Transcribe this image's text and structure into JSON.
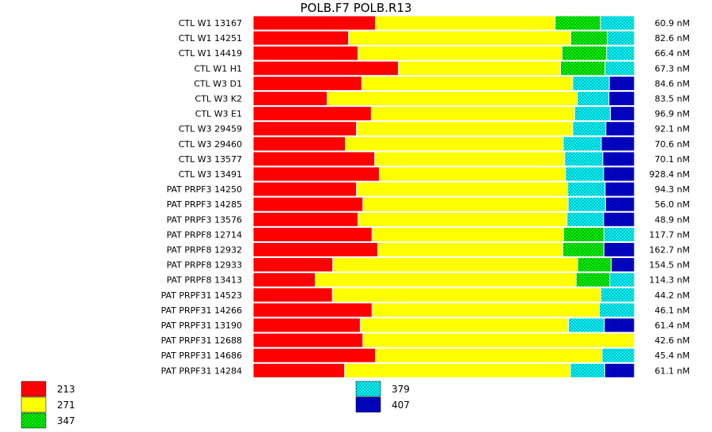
{
  "chart_data": {
    "type": "bar",
    "orientation": "horizontal",
    "stacked": true,
    "normalized": true,
    "title": "POLB.F7  POLB.R13",
    "categories": [
      "CTL W1 13167",
      "CTL W1 14251",
      "CTL W1 14419",
      "CTL W1 H1",
      "CTL W3 D1",
      "CTL W3 K2",
      "CTL W3 E1",
      "CTL W3 29459",
      "CTL W3 29460",
      "CTL W3 13577",
      "CTL W3 13491",
      "PAT PRPF3 14250",
      "PAT PRPF3 14285",
      "PAT PRPF3 13576",
      "PAT PRPF8 12714",
      "PAT PRPF8 12932",
      "PAT PRPF8 12933",
      "PAT PRPF8 13413",
      "PAT PRPF31 14523",
      "PAT PRPF31 14266",
      "PAT PRPF31 13190",
      "PAT PRPF31 12688",
      "PAT PRPF31 14686",
      "PAT PRPF31 14284"
    ],
    "concentrations": [
      "60.9 nM",
      "82.6 nM",
      "66.4 nM",
      "67.3 nM",
      "84.6 nM",
      "83.5 nM",
      "96.9 nM",
      "92.1 nM",
      "70.6 nM",
      "70.1 nM",
      "928.4 nM",
      "94.3 nM",
      "56.0 nM",
      "48.9 nM",
      "117.7 nM",
      "162.7 nM",
      "154.5 nM",
      "114.3 nM",
      "44.2 nM",
      "46.1 nM",
      "61.4 nM",
      "42.6 nM",
      "45.4 nM",
      "61.1 nM"
    ],
    "series": [
      {
        "name": "213",
        "color": "#ff0000",
        "pattern": "solid",
        "values": [
          32.1,
          25.0,
          27.5,
          38.1,
          28.5,
          19.4,
          31.0,
          27.1,
          24.2,
          31.9,
          33.1,
          27.1,
          28.8,
          27.5,
          31.2,
          32.7,
          20.9,
          16.3,
          20.8,
          31.2,
          28.1,
          28.8,
          32.1,
          24.0
        ]
      },
      {
        "name": "271",
        "color": "#ffff00",
        "pattern": "solid",
        "values": [
          47.1,
          58.3,
          53.5,
          42.5,
          55.3,
          65.6,
          53.3,
          56.7,
          57.1,
          49.8,
          48.8,
          55.4,
          53.8,
          54.8,
          50.2,
          48.5,
          64.2,
          68.4,
          70.4,
          59.6,
          54.6,
          71.2,
          59.4,
          59.2
        ]
      },
      {
        "name": "347",
        "color": "#00ff00",
        "pattern": "check",
        "values": [
          11.9,
          9.6,
          11.7,
          11.7,
          0,
          0,
          0,
          0,
          0,
          0,
          0,
          0,
          0,
          0,
          10.6,
          10.8,
          8.8,
          8.8,
          0,
          0,
          0,
          0,
          0,
          0
        ]
      },
      {
        "name": "379",
        "color": "#00ffff",
        "pattern": "check",
        "values": [
          8.9,
          7.1,
          7.3,
          7.7,
          9.6,
          8.3,
          9.4,
          8.7,
          10.0,
          10.0,
          10.0,
          9.8,
          9.8,
          9.6,
          8.0,
          0,
          0,
          6.5,
          8.8,
          9.2,
          9.4,
          0,
          8.5,
          9.0
        ]
      },
      {
        "name": "407",
        "color": "#0000ff",
        "pattern": "check",
        "values": [
          0,
          0,
          0,
          0,
          6.6,
          6.7,
          6.3,
          7.5,
          8.7,
          8.3,
          8.1,
          7.7,
          7.6,
          8.1,
          0,
          8.0,
          6.1,
          0,
          0,
          0,
          7.9,
          0,
          0,
          7.8
        ]
      }
    ],
    "xlim": [
      0,
      100
    ],
    "legend": {
      "position": "bottom",
      "columns": [
        [
          "213",
          "271",
          "347"
        ],
        [
          "379",
          "407"
        ]
      ]
    },
    "grid": false
  }
}
